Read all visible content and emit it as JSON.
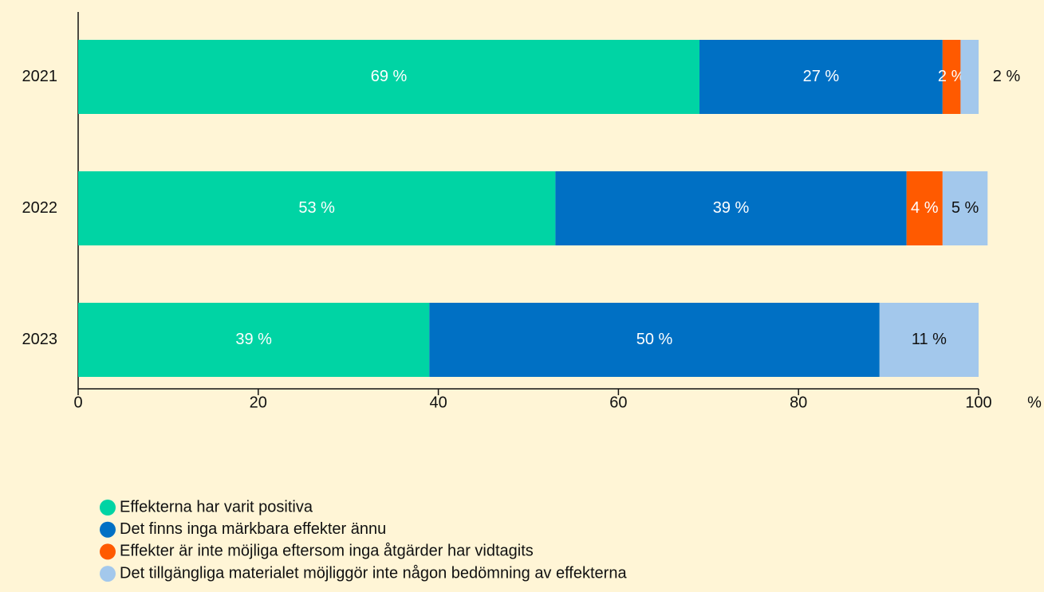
{
  "chart_data": {
    "type": "stacked_barh",
    "categories": [
      "2021",
      "2022",
      "2023"
    ],
    "series": [
      {
        "name": "Effekterna har varit positiva",
        "color": "#00d4a4",
        "values": [
          69,
          53,
          39
        ],
        "value_labels": [
          "69 %",
          "53 %",
          "39 %"
        ]
      },
      {
        "name": "Det finns inga märkbara effekter ännu",
        "color": "#0070c4",
        "values": [
          27,
          39,
          50
        ],
        "value_labels": [
          "27 %",
          "39 %",
          "50 %"
        ]
      },
      {
        "name": "Effekter är inte möjliga eftersom inga åtgärder har vidtagits",
        "color": "#ff5a00",
        "values": [
          2,
          4,
          null
        ],
        "value_labels": [
          "2 %",
          "4 %",
          null
        ]
      },
      {
        "name": "Det tillgängliga materialet möjliggör inte någon bedömning av effekterna",
        "color": "#a3c8ec",
        "values": [
          2,
          5,
          11
        ],
        "value_labels": [
          "2 %",
          "5 %",
          "11 %"
        ]
      }
    ],
    "xlim": [
      0,
      100
    ],
    "xticks": [
      0,
      20,
      40,
      60,
      80,
      100
    ],
    "x_label": "%",
    "grid": false
  }
}
